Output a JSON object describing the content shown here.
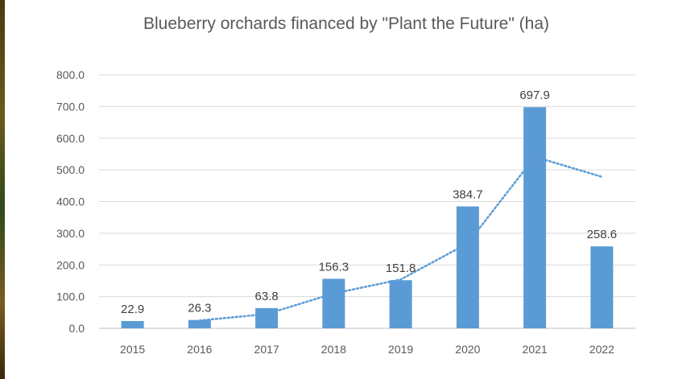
{
  "chart_data": {
    "type": "bar",
    "title": "Blueberry orchards financed by \"Plant the Future\" (ha)",
    "categories": [
      "2015",
      "2016",
      "2017",
      "2018",
      "2019",
      "2020",
      "2021",
      "2022"
    ],
    "values": [
      22.9,
      26.3,
      63.8,
      156.3,
      151.8,
      384.7,
      697.9,
      258.6
    ],
    "data_labels": [
      "22.9",
      "26.3",
      "63.8",
      "156.3",
      "151.8",
      "384.7",
      "697.9",
      "258.6"
    ],
    "y_ticks": [
      "0.0",
      "100.0",
      "200.0",
      "300.0",
      "400.0",
      "500.0",
      "600.0",
      "700.0",
      "800.0"
    ],
    "ylim": [
      0,
      800
    ],
    "grid": true,
    "legend": "none",
    "trendline": {
      "type": "moving-average",
      "period": 2,
      "values": [
        24.6,
        45.05,
        110.05,
        154.05,
        268.25,
        541.3,
        478.25
      ]
    },
    "colors": {
      "bar": "#5b9bd5",
      "trend": "#5b9bd5",
      "grid": "#d9d9d9",
      "text": "#595959"
    }
  }
}
